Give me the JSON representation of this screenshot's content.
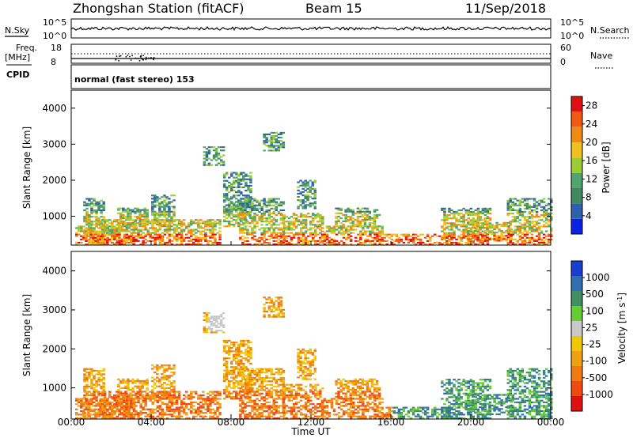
{
  "header": {
    "station": "Zhongshan Station (fitACF)",
    "beam": "Beam 15",
    "date": "11/Sep/2018"
  },
  "top_panels": {
    "nsky_label": "N.Sky",
    "nsky_ticks": [
      "10^5",
      "10^0"
    ],
    "nsearch_label": "N.Search",
    "nsearch_ticks": [
      "10^5",
      "10^0"
    ],
    "freq_label": "Freq.",
    "freq_unit": "[MHz]",
    "freq_ticks": [
      "18",
      "8"
    ],
    "nave_label": "Nave",
    "nave_ticks": [
      "60",
      "0"
    ],
    "cpid_label": "CPID",
    "cpid_text": "normal (fast stereo) 153"
  },
  "colors": {
    "power_scale": [
      "#0a22e6",
      "#2f5fb0",
      "#3f8860",
      "#4ea66c",
      "#9acd32",
      "#f0c020",
      "#f08a10",
      "#f05a10",
      "#e01010"
    ],
    "velocity_scale": [
      "#e01010",
      "#f04a10",
      "#f07a10",
      "#f0a010",
      "#f0c800",
      "#c8c8c8",
      "#66cc33",
      "#3f8f60",
      "#2f6fb0",
      "#1a3fd0"
    ]
  },
  "chart_data": [
    {
      "type": "heatmap",
      "name": "power",
      "ylabel": "Slant Range [km]",
      "yticks": [
        "1000",
        "2000",
        "3000",
        "4000"
      ],
      "ylim": [
        200,
        4500
      ],
      "xticks": [],
      "colorbar_label": "Power [dB]",
      "colorbar_ticks": [
        "4",
        "8",
        "12",
        "16",
        "20",
        "24",
        "28"
      ],
      "clim": [
        0,
        30
      ]
    },
    {
      "type": "heatmap",
      "name": "velocity",
      "ylabel": "Slant Range [km]",
      "yticks": [
        "1000",
        "2000",
        "3000",
        "4000"
      ],
      "ylim": [
        200,
        4500
      ],
      "xlabel": "Time UT",
      "xticks": [
        "00:00",
        "04:00",
        "08:00",
        "12:00",
        "16:00",
        "20:00",
        "00:00"
      ],
      "xlim_hours": [
        0,
        24
      ],
      "colorbar_label": "Velocity [m s",
      "colorbar_sup": "-1",
      "colorbar_label_end": "]",
      "colorbar_ticks": [
        "1000",
        "500",
        "100",
        "25",
        "-25",
        "-100",
        "-500",
        "-1000"
      ]
    }
  ]
}
